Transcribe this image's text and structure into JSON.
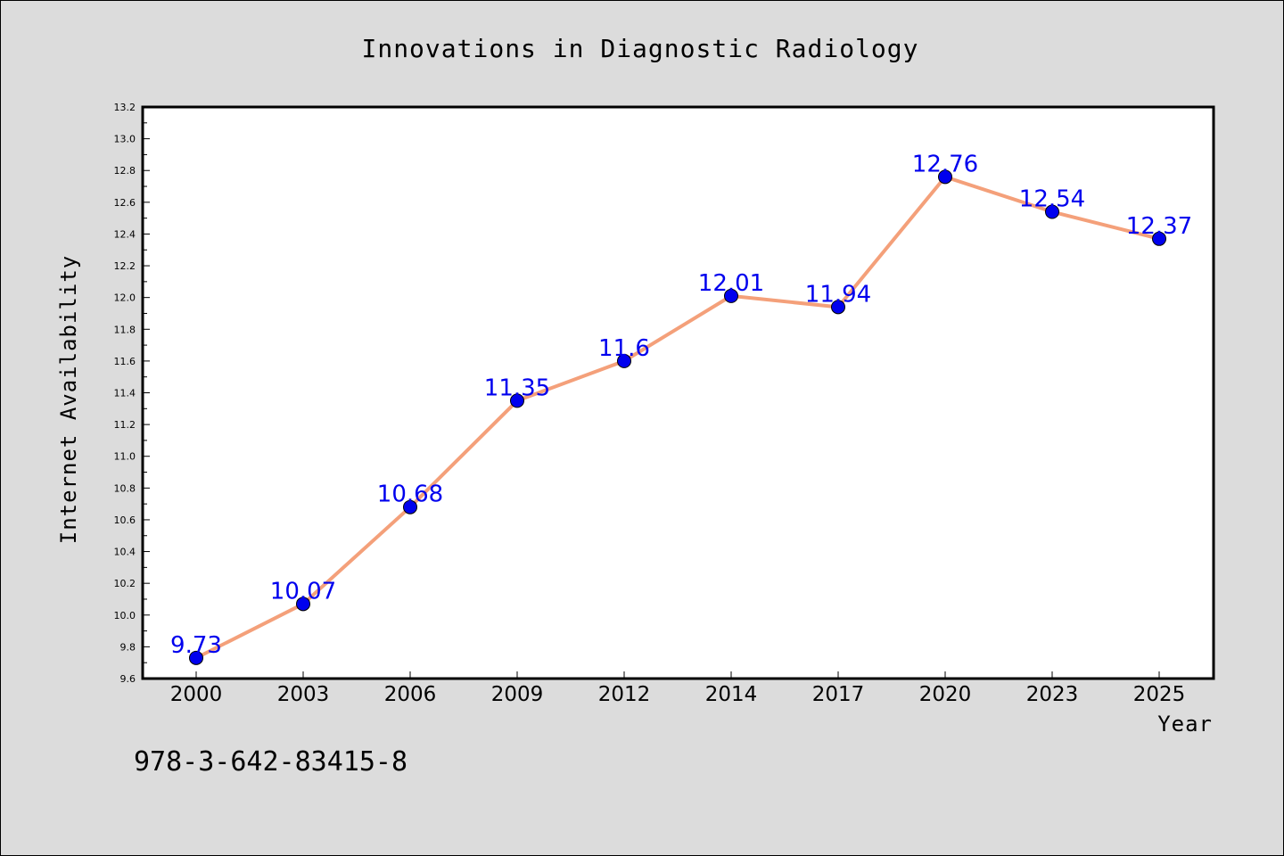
{
  "chart_data": {
    "type": "line",
    "title": "Innovations in Diagnostic Radiology",
    "xlabel": "Year",
    "ylabel": "Internet Availability",
    "categories": [
      "2000",
      "2003",
      "2006",
      "2009",
      "2012",
      "2014",
      "2017",
      "2020",
      "2023",
      "2025"
    ],
    "series": [
      {
        "values": [
          9.73,
          10.07,
          10.68,
          11.35,
          11.6,
          12.01,
          11.94,
          12.76,
          12.54,
          12.37
        ],
        "labels": [
          "9.73",
          "10.07",
          "10.68",
          "11.35",
          "11.6",
          "12.01",
          "11.94",
          "12.76",
          "12.54",
          "12.37"
        ],
        "line_color": "#f4a07a",
        "marker_color": "#0000ee",
        "label_color": "#0000ee"
      }
    ],
    "ylim": [
      9.6,
      13.2
    ],
    "yticks": [
      "9.6",
      "9.8",
      "10.0",
      "10.2",
      "10.4",
      "10.6",
      "10.8",
      "11.0",
      "11.2",
      "11.4",
      "11.6",
      "11.8",
      "12.0",
      "12.2",
      "12.4",
      "12.6",
      "12.8",
      "13.0",
      "13.2"
    ],
    "grid": false,
    "legend": "none"
  },
  "footnote": "978-3-642-83415-8",
  "colors": {
    "background": "#dcdcdc",
    "plot_background": "#ffffff"
  }
}
